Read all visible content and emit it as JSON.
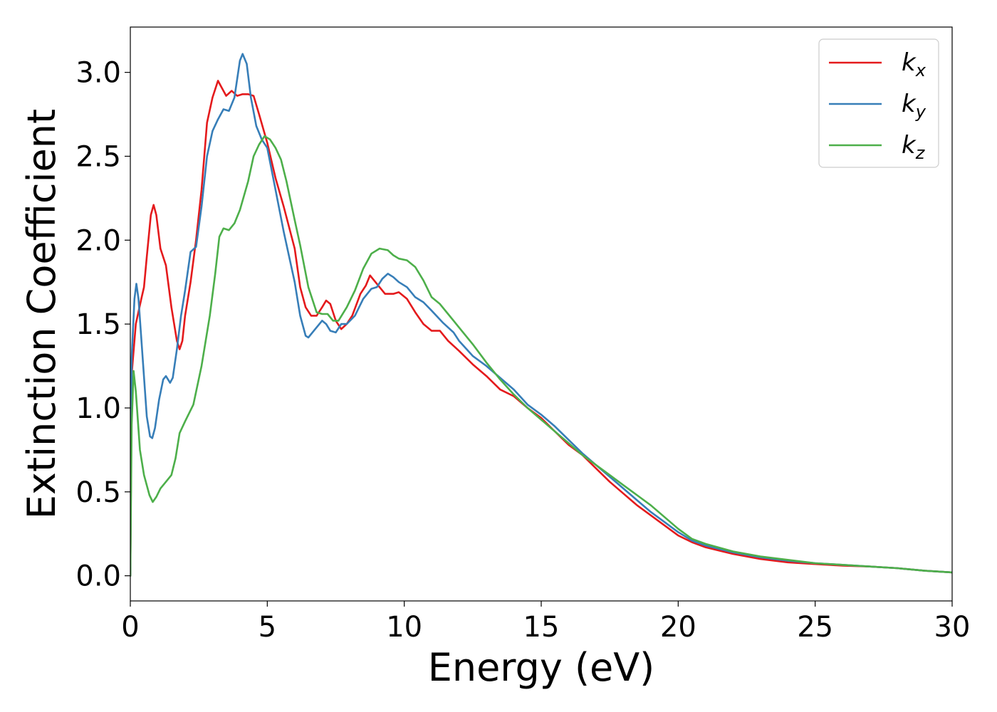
{
  "chart_data": {
    "type": "line",
    "title": "",
    "xlabel": "Energy (eV)",
    "ylabel": "Extinction Coefficient",
    "xlim": [
      0,
      30
    ],
    "ylim": [
      -0.15,
      3.27
    ],
    "xticks": [
      0,
      5,
      10,
      15,
      20,
      25,
      30
    ],
    "xtick_labels": [
      "0",
      "5",
      "10",
      "15",
      "20",
      "25",
      "30"
    ],
    "yticks": [
      0.0,
      0.5,
      1.0,
      1.5,
      2.0,
      2.5,
      3.0
    ],
    "ytick_labels": [
      "0.0",
      "0.5",
      "1.0",
      "1.5",
      "2.0",
      "2.5",
      "3.0"
    ],
    "grid": false,
    "legend_position": "top-right",
    "series": [
      {
        "name": "k",
        "subscript": "x",
        "color": "#e41a1c",
        "points": [
          [
            0,
            0
          ],
          [
            0.05,
            1.2
          ],
          [
            0.2,
            1.5
          ],
          [
            0.4,
            1.65
          ],
          [
            0.5,
            1.72
          ],
          [
            0.6,
            1.9
          ],
          [
            0.75,
            2.15
          ],
          [
            0.85,
            2.21
          ],
          [
            0.95,
            2.15
          ],
          [
            1.1,
            1.95
          ],
          [
            1.3,
            1.85
          ],
          [
            1.5,
            1.6
          ],
          [
            1.7,
            1.4
          ],
          [
            1.8,
            1.35
          ],
          [
            1.9,
            1.4
          ],
          [
            2.0,
            1.55
          ],
          [
            2.2,
            1.75
          ],
          [
            2.4,
            2.0
          ],
          [
            2.6,
            2.3
          ],
          [
            2.8,
            2.7
          ],
          [
            3.0,
            2.85
          ],
          [
            3.2,
            2.95
          ],
          [
            3.3,
            2.92
          ],
          [
            3.5,
            2.86
          ],
          [
            3.7,
            2.89
          ],
          [
            3.9,
            2.86
          ],
          [
            4.1,
            2.87
          ],
          [
            4.3,
            2.87
          ],
          [
            4.5,
            2.86
          ],
          [
            4.7,
            2.75
          ],
          [
            5.0,
            2.58
          ],
          [
            5.3,
            2.37
          ],
          [
            5.6,
            2.2
          ],
          [
            6.0,
            1.95
          ],
          [
            6.2,
            1.72
          ],
          [
            6.4,
            1.6
          ],
          [
            6.6,
            1.55
          ],
          [
            6.8,
            1.55
          ],
          [
            7.0,
            1.6
          ],
          [
            7.15,
            1.64
          ],
          [
            7.3,
            1.62
          ],
          [
            7.5,
            1.52
          ],
          [
            7.7,
            1.47
          ],
          [
            7.9,
            1.5
          ],
          [
            8.1,
            1.55
          ],
          [
            8.4,
            1.68
          ],
          [
            8.6,
            1.73
          ],
          [
            8.75,
            1.79
          ],
          [
            8.9,
            1.76
          ],
          [
            9.1,
            1.72
          ],
          [
            9.3,
            1.68
          ],
          [
            9.6,
            1.68
          ],
          [
            9.8,
            1.69
          ],
          [
            10.1,
            1.65
          ],
          [
            10.4,
            1.57
          ],
          [
            10.7,
            1.5
          ],
          [
            11.0,
            1.46
          ],
          [
            11.3,
            1.46
          ],
          [
            11.6,
            1.4
          ],
          [
            12.0,
            1.34
          ],
          [
            12.5,
            1.26
          ],
          [
            13.0,
            1.19
          ],
          [
            13.5,
            1.11
          ],
          [
            14.0,
            1.07
          ],
          [
            14.5,
            1.0
          ],
          [
            15.0,
            0.94
          ],
          [
            15.5,
            0.86
          ],
          [
            16.0,
            0.78
          ],
          [
            16.5,
            0.72
          ],
          [
            17.0,
            0.64
          ],
          [
            17.5,
            0.56
          ],
          [
            18.0,
            0.49
          ],
          [
            18.5,
            0.42
          ],
          [
            19.0,
            0.36
          ],
          [
            19.5,
            0.3
          ],
          [
            20.0,
            0.24
          ],
          [
            20.5,
            0.2
          ],
          [
            21.0,
            0.17
          ],
          [
            22.0,
            0.13
          ],
          [
            23.0,
            0.1
          ],
          [
            24.0,
            0.08
          ],
          [
            25.0,
            0.07
          ],
          [
            26.0,
            0.06
          ],
          [
            27.0,
            0.055
          ],
          [
            28.0,
            0.045
          ],
          [
            29.0,
            0.03
          ],
          [
            30.0,
            0.02
          ]
        ]
      },
      {
        "name": "k",
        "subscript": "y",
        "color": "#377eb8",
        "points": [
          [
            0,
            0
          ],
          [
            0.05,
            1.3
          ],
          [
            0.15,
            1.65
          ],
          [
            0.22,
            1.74
          ],
          [
            0.3,
            1.65
          ],
          [
            0.45,
            1.3
          ],
          [
            0.6,
            0.95
          ],
          [
            0.72,
            0.83
          ],
          [
            0.8,
            0.82
          ],
          [
            0.9,
            0.88
          ],
          [
            1.05,
            1.05
          ],
          [
            1.2,
            1.17
          ],
          [
            1.3,
            1.19
          ],
          [
            1.45,
            1.15
          ],
          [
            1.55,
            1.18
          ],
          [
            1.7,
            1.35
          ],
          [
            1.85,
            1.55
          ],
          [
            2.0,
            1.7
          ],
          [
            2.2,
            1.93
          ],
          [
            2.4,
            1.96
          ],
          [
            2.6,
            2.2
          ],
          [
            2.8,
            2.5
          ],
          [
            3.0,
            2.65
          ],
          [
            3.2,
            2.72
          ],
          [
            3.4,
            2.78
          ],
          [
            3.6,
            2.77
          ],
          [
            3.8,
            2.85
          ],
          [
            4.0,
            3.07
          ],
          [
            4.1,
            3.11
          ],
          [
            4.25,
            3.05
          ],
          [
            4.4,
            2.85
          ],
          [
            4.6,
            2.68
          ],
          [
            4.8,
            2.6
          ],
          [
            5.0,
            2.55
          ],
          [
            5.3,
            2.3
          ],
          [
            5.6,
            2.05
          ],
          [
            6.0,
            1.75
          ],
          [
            6.2,
            1.55
          ],
          [
            6.4,
            1.43
          ],
          [
            6.5,
            1.42
          ],
          [
            6.7,
            1.46
          ],
          [
            7.0,
            1.52
          ],
          [
            7.15,
            1.5
          ],
          [
            7.3,
            1.46
          ],
          [
            7.5,
            1.45
          ],
          [
            7.7,
            1.5
          ],
          [
            7.9,
            1.5
          ],
          [
            8.2,
            1.55
          ],
          [
            8.5,
            1.65
          ],
          [
            8.8,
            1.71
          ],
          [
            9.0,
            1.72
          ],
          [
            9.2,
            1.77
          ],
          [
            9.4,
            1.8
          ],
          [
            9.6,
            1.78
          ],
          [
            9.8,
            1.75
          ],
          [
            10.1,
            1.72
          ],
          [
            10.4,
            1.66
          ],
          [
            10.7,
            1.63
          ],
          [
            11.0,
            1.58
          ],
          [
            11.4,
            1.51
          ],
          [
            11.8,
            1.45
          ],
          [
            12.0,
            1.4
          ],
          [
            12.5,
            1.31
          ],
          [
            13.0,
            1.25
          ],
          [
            13.5,
            1.18
          ],
          [
            14.0,
            1.11
          ],
          [
            14.5,
            1.02
          ],
          [
            15.0,
            0.96
          ],
          [
            15.5,
            0.89
          ],
          [
            16.0,
            0.81
          ],
          [
            16.5,
            0.73
          ],
          [
            17.0,
            0.66
          ],
          [
            17.5,
            0.59
          ],
          [
            18.0,
            0.52
          ],
          [
            18.5,
            0.45
          ],
          [
            19.0,
            0.38
          ],
          [
            19.5,
            0.32
          ],
          [
            20.0,
            0.26
          ],
          [
            20.5,
            0.21
          ],
          [
            21.0,
            0.18
          ],
          [
            22.0,
            0.14
          ],
          [
            23.0,
            0.11
          ],
          [
            24.0,
            0.09
          ],
          [
            25.0,
            0.075
          ],
          [
            26.0,
            0.065
          ],
          [
            27.0,
            0.055
          ],
          [
            28.0,
            0.045
          ],
          [
            29.0,
            0.03
          ],
          [
            30.0,
            0.02
          ]
        ]
      },
      {
        "name": "k",
        "subscript": "z",
        "color": "#4daf4a",
        "points": [
          [
            0,
            0
          ],
          [
            0.05,
            0.9
          ],
          [
            0.12,
            1.22
          ],
          [
            0.2,
            1.1
          ],
          [
            0.35,
            0.75
          ],
          [
            0.5,
            0.6
          ],
          [
            0.7,
            0.48
          ],
          [
            0.82,
            0.44
          ],
          [
            0.95,
            0.47
          ],
          [
            1.1,
            0.52
          ],
          [
            1.3,
            0.56
          ],
          [
            1.5,
            0.6
          ],
          [
            1.65,
            0.7
          ],
          [
            1.8,
            0.85
          ],
          [
            2.0,
            0.92
          ],
          [
            2.3,
            1.02
          ],
          [
            2.6,
            1.25
          ],
          [
            2.9,
            1.55
          ],
          [
            3.1,
            1.8
          ],
          [
            3.25,
            2.02
          ],
          [
            3.4,
            2.07
          ],
          [
            3.6,
            2.06
          ],
          [
            3.8,
            2.1
          ],
          [
            4.0,
            2.18
          ],
          [
            4.3,
            2.35
          ],
          [
            4.5,
            2.5
          ],
          [
            4.7,
            2.57
          ],
          [
            4.9,
            2.62
          ],
          [
            5.1,
            2.6
          ],
          [
            5.3,
            2.55
          ],
          [
            5.5,
            2.48
          ],
          [
            5.7,
            2.35
          ],
          [
            6.0,
            2.12
          ],
          [
            6.2,
            1.97
          ],
          [
            6.5,
            1.72
          ],
          [
            6.8,
            1.57
          ],
          [
            7.0,
            1.56
          ],
          [
            7.2,
            1.56
          ],
          [
            7.4,
            1.52
          ],
          [
            7.6,
            1.52
          ],
          [
            7.9,
            1.6
          ],
          [
            8.2,
            1.7
          ],
          [
            8.5,
            1.83
          ],
          [
            8.8,
            1.92
          ],
          [
            9.1,
            1.95
          ],
          [
            9.4,
            1.94
          ],
          [
            9.6,
            1.91
          ],
          [
            9.8,
            1.89
          ],
          [
            10.1,
            1.88
          ],
          [
            10.4,
            1.84
          ],
          [
            10.7,
            1.76
          ],
          [
            11.0,
            1.66
          ],
          [
            11.3,
            1.62
          ],
          [
            11.6,
            1.56
          ],
          [
            12.0,
            1.48
          ],
          [
            12.5,
            1.38
          ],
          [
            13.0,
            1.27
          ],
          [
            13.5,
            1.17
          ],
          [
            14.0,
            1.08
          ],
          [
            14.5,
            1.0
          ],
          [
            15.0,
            0.93
          ],
          [
            15.5,
            0.86
          ],
          [
            16.0,
            0.79
          ],
          [
            16.5,
            0.72
          ],
          [
            17.0,
            0.66
          ],
          [
            17.5,
            0.6
          ],
          [
            18.0,
            0.54
          ],
          [
            18.5,
            0.48
          ],
          [
            19.0,
            0.42
          ],
          [
            19.5,
            0.35
          ],
          [
            20.0,
            0.28
          ],
          [
            20.5,
            0.22
          ],
          [
            21.0,
            0.19
          ],
          [
            22.0,
            0.145
          ],
          [
            23.0,
            0.115
          ],
          [
            24.0,
            0.095
          ],
          [
            25.0,
            0.075
          ],
          [
            26.0,
            0.065
          ],
          [
            27.0,
            0.055
          ],
          [
            28.0,
            0.045
          ],
          [
            29.0,
            0.03
          ],
          [
            30.0,
            0.02
          ]
        ]
      }
    ]
  }
}
